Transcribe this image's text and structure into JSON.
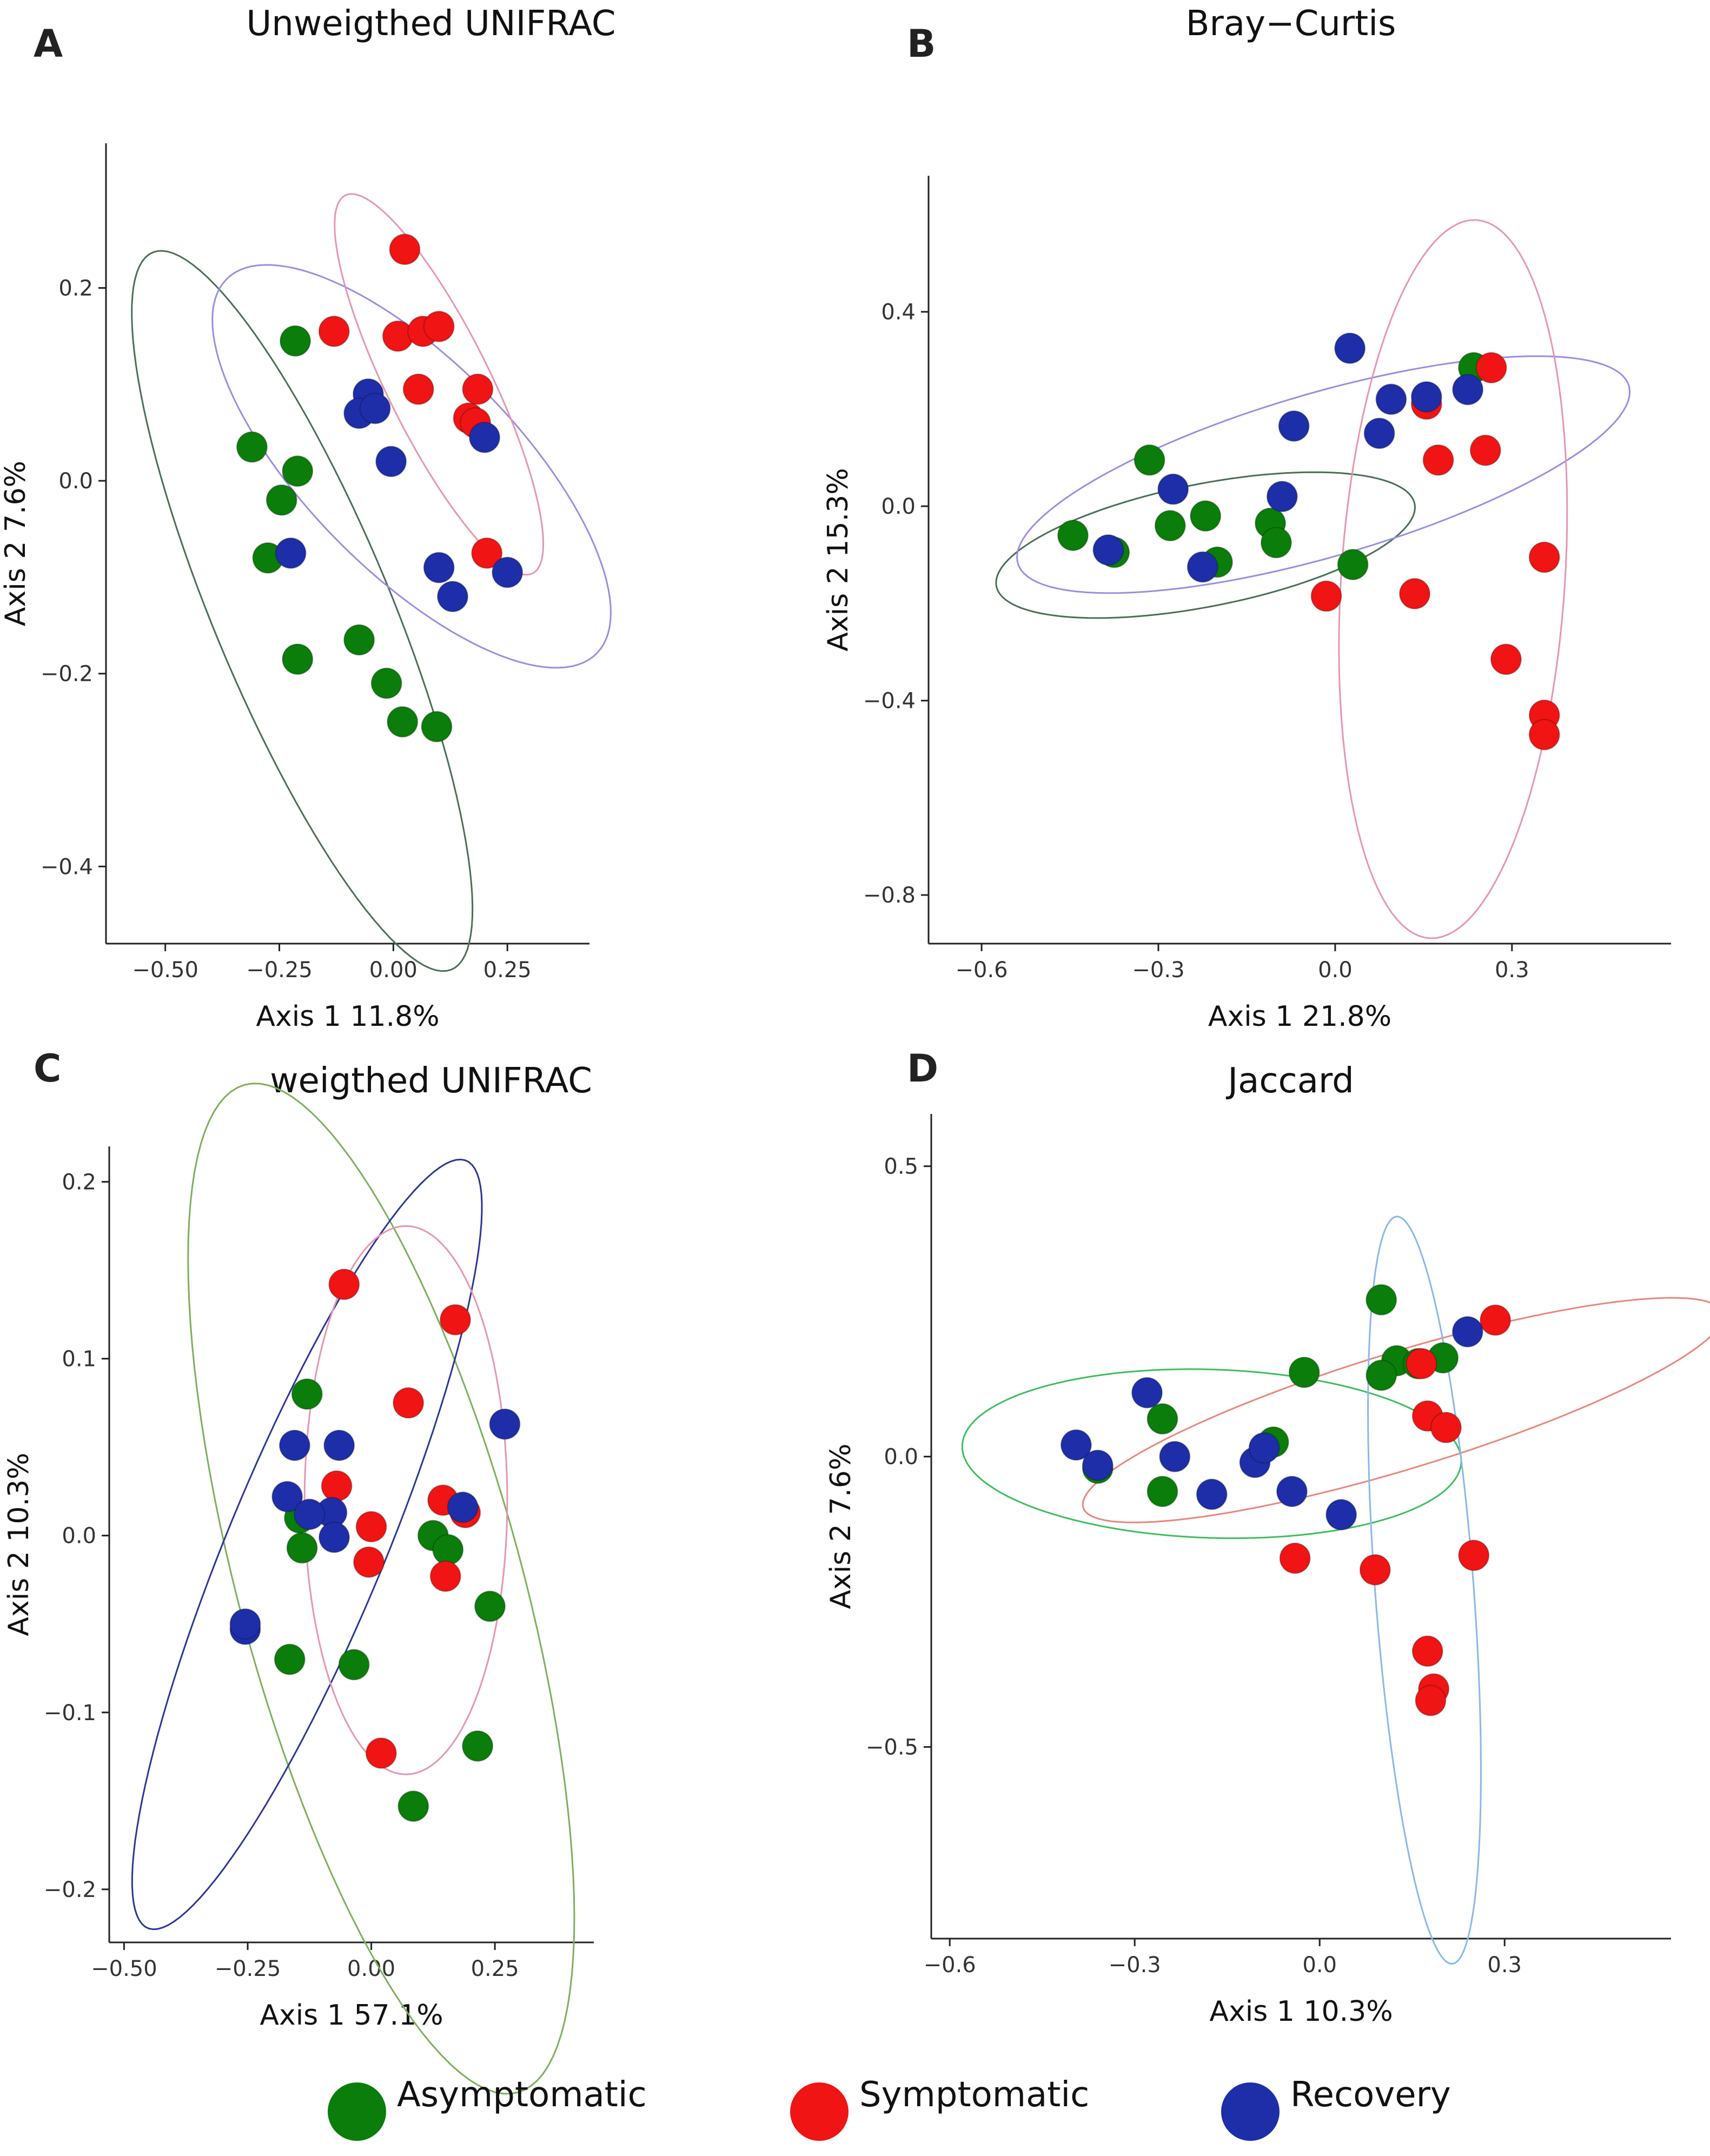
{
  "figure": {
    "legend": [
      {
        "label": "Asymptomatic",
        "color": "#0a7d0a"
      },
      {
        "label": "Symptomatic",
        "color": "#f01414"
      },
      {
        "label": "Recovery",
        "color": "#1e2ea8"
      }
    ]
  },
  "chart_data": [
    {
      "letter": "A",
      "title": "Unweigthed UNIFRAC",
      "type": "scatter",
      "xlabel": "Axis 1  11.8%",
      "ylabel": "Axis 2  7.6%",
      "xlim": [
        -0.63,
        0.43
      ],
      "ylim": [
        -0.48,
        0.35
      ],
      "xticks": [
        -0.5,
        -0.25,
        0.0,
        0.25
      ],
      "xtick_labels": [
        "−0.50",
        "−0.25",
        "0.00",
        "0.25"
      ],
      "yticks": [
        -0.4,
        -0.2,
        0.0,
        0.2
      ],
      "ytick_labels": [
        "−0.4",
        "−0.2",
        "0.0",
        "0.2"
      ],
      "series": [
        {
          "name": "Asymptomatic",
          "color": "#0a7d0a",
          "points": [
            [
              -0.215,
              0.145
            ],
            [
              -0.31,
              0.035
            ],
            [
              -0.21,
              0.01
            ],
            [
              -0.245,
              -0.02
            ],
            [
              -0.275,
              -0.08
            ],
            [
              -0.21,
              -0.185
            ],
            [
              -0.075,
              -0.165
            ],
            [
              -0.015,
              -0.21
            ],
            [
              0.02,
              -0.25
            ],
            [
              0.095,
              -0.255
            ]
          ]
        },
        {
          "name": "Symptomatic",
          "color": "#f01414",
          "points": [
            [
              0.025,
              0.24
            ],
            [
              -0.13,
              0.155
            ],
            [
              0.01,
              0.15
            ],
            [
              0.065,
              0.155
            ],
            [
              0.1,
              0.16
            ],
            [
              0.055,
              0.095
            ],
            [
              0.185,
              0.095
            ],
            [
              0.165,
              0.065
            ],
            [
              0.18,
              0.06
            ],
            [
              0.205,
              -0.075
            ]
          ]
        },
        {
          "name": "Recovery",
          "color": "#1e2ea8",
          "points": [
            [
              -0.055,
              0.09
            ],
            [
              -0.075,
              0.07
            ],
            [
              -0.04,
              0.075
            ],
            [
              -0.005,
              0.02
            ],
            [
              0.2,
              0.045
            ],
            [
              -0.225,
              -0.075
            ],
            [
              0.1,
              -0.09
            ],
            [
              0.13,
              -0.12
            ],
            [
              0.25,
              -0.095
            ]
          ]
        }
      ],
      "ellipses": [
        {
          "color": "#4a6e55",
          "center": [
            -0.2,
            -0.135
          ],
          "rx": 0.505,
          "ry": 0.155,
          "angle": -45
        },
        {
          "color": "#9a8ee0",
          "center": [
            0.04,
            0.015
          ],
          "rx": 0.465,
          "ry": 0.135,
          "angle": -21
        },
        {
          "color": "#e596b0",
          "center": [
            0.1,
            0.1
          ],
          "rx": 0.29,
          "ry": 0.085,
          "angle": -40
        }
      ]
    },
    {
      "letter": "B",
      "title": "Bray−Curtis",
      "type": "scatter",
      "xlabel": "Axis 1  21.8%",
      "ylabel": "Axis 2  15.3%",
      "xlim": [
        -0.69,
        0.57
      ],
      "ylim": [
        -0.9,
        0.68
      ],
      "xticks": [
        -0.6,
        -0.3,
        0.0,
        0.3
      ],
      "xtick_labels": [
        "−0.6",
        "−0.3",
        "0.0",
        "0.3"
      ],
      "yticks": [
        -0.8,
        -0.4,
        0.0,
        0.4
      ],
      "ytick_labels": [
        "−0.8",
        "−0.4",
        "0.0",
        "0.4"
      ],
      "series": [
        {
          "name": "Asymptomatic",
          "color": "#0a7d0a",
          "points": [
            [
              -0.315,
              0.095
            ],
            [
              -0.445,
              -0.06
            ],
            [
              -0.375,
              -0.095
            ],
            [
              -0.28,
              -0.04
            ],
            [
              -0.22,
              -0.02
            ],
            [
              -0.2,
              -0.115
            ],
            [
              -0.11,
              -0.035
            ],
            [
              -0.1,
              -0.075
            ],
            [
              0.03,
              -0.12
            ],
            [
              0.235,
              0.285
            ]
          ]
        },
        {
          "name": "Symptomatic",
          "color": "#f01414",
          "points": [
            [
              0.265,
              0.285
            ],
            [
              0.155,
              0.21
            ],
            [
              0.175,
              0.095
            ],
            [
              0.255,
              0.115
            ],
            [
              -0.015,
              -0.185
            ],
            [
              0.135,
              -0.18
            ],
            [
              0.355,
              -0.105
            ],
            [
              0.29,
              -0.315
            ],
            [
              0.355,
              -0.43
            ],
            [
              0.355,
              -0.47
            ]
          ]
        },
        {
          "name": "Recovery",
          "color": "#1e2ea8",
          "points": [
            [
              0.025,
              0.325
            ],
            [
              0.095,
              0.22
            ],
            [
              0.155,
              0.225
            ],
            [
              0.225,
              0.24
            ],
            [
              -0.07,
              0.165
            ],
            [
              0.075,
              0.15
            ],
            [
              -0.275,
              0.035
            ],
            [
              -0.09,
              0.02
            ],
            [
              -0.385,
              -0.09
            ],
            [
              -0.225,
              -0.125
            ]
          ]
        }
      ],
      "ellipses": [
        {
          "color": "#4a6e55",
          "center": [
            -0.22,
            -0.08
          ],
          "rx": 0.365,
          "ry": 0.125,
          "angle": 14
        },
        {
          "color": "#9a8ee0",
          "center": [
            -0.02,
            0.065
          ],
          "rx": 0.55,
          "ry": 0.165,
          "angle": 20
        },
        {
          "color": "#e596b0",
          "center": [
            0.2,
            -0.15
          ],
          "rx": 0.19,
          "ry": 0.74,
          "angle": -3
        }
      ]
    },
    {
      "letter": "C",
      "title": "weigthed UNIFRAC",
      "type": "scatter",
      "xlabel": "Axis 1  57.1%",
      "ylabel": "Axis 2  10.3%",
      "xlim": [
        -0.53,
        0.45
      ],
      "ylim": [
        -0.23,
        0.22
      ],
      "xticks": [
        -0.5,
        -0.25,
        0.0,
        0.25
      ],
      "xtick_labels": [
        "−0.50",
        "−0.25",
        "0.00",
        "0.25"
      ],
      "yticks": [
        -0.2,
        -0.1,
        0.0,
        0.1,
        0.2
      ],
      "ytick_labels": [
        "−0.2",
        "−0.1",
        "0.0",
        "0.1",
        "0.2"
      ],
      "series": [
        {
          "name": "Asymptomatic",
          "color": "#0a7d0a",
          "points": [
            [
              -0.13,
              0.08
            ],
            [
              -0.145,
              0.01
            ],
            [
              -0.14,
              -0.007
            ],
            [
              -0.165,
              -0.07
            ],
            [
              -0.035,
              -0.073
            ],
            [
              0.125,
              0.0
            ],
            [
              0.155,
              -0.008
            ],
            [
              0.24,
              -0.04
            ],
            [
              0.215,
              -0.119
            ],
            [
              0.085,
              -0.153
            ]
          ]
        },
        {
          "name": "Symptomatic",
          "color": "#f01414",
          "points": [
            [
              -0.055,
              0.142
            ],
            [
              0.17,
              0.122
            ],
            [
              0.075,
              0.075
            ],
            [
              -0.07,
              0.028
            ],
            [
              0.0,
              0.005
            ],
            [
              -0.005,
              -0.015
            ],
            [
              0.145,
              0.02
            ],
            [
              0.19,
              0.013
            ],
            [
              0.15,
              -0.023
            ],
            [
              0.02,
              -0.123
            ]
          ]
        },
        {
          "name": "Recovery",
          "color": "#1e2ea8",
          "points": [
            [
              0.27,
              0.063
            ],
            [
              -0.155,
              0.051
            ],
            [
              -0.065,
              0.051
            ],
            [
              -0.17,
              0.022
            ],
            [
              -0.08,
              0.013
            ],
            [
              -0.125,
              0.012
            ],
            [
              -0.075,
              -0.001
            ],
            [
              0.185,
              0.016
            ],
            [
              -0.255,
              -0.053
            ],
            [
              -0.255,
              -0.05
            ]
          ]
        }
      ],
      "ellipses": [
        {
          "color": "#7caf5c",
          "center": [
            0.02,
            -0.03
          ],
          "rx": 0.445,
          "ry": 0.19,
          "angle": -32
        },
        {
          "color": "#2a3696",
          "center": [
            -0.13,
            -0.005
          ],
          "rx": 0.405,
          "ry": 0.092,
          "angle": 30
        },
        {
          "color": "#e596b0",
          "center": [
            0.07,
            0.02
          ],
          "rx": 0.205,
          "ry": 0.155,
          "angle": 0
        }
      ]
    },
    {
      "letter": "D",
      "title": "Jaccard",
      "type": "scatter",
      "xlabel": "Axis 1  10.3%",
      "ylabel": "Axis 2  7.6%",
      "xlim": [
        -0.63,
        0.57
      ],
      "ylim": [
        -0.83,
        0.59
      ],
      "xticks": [
        -0.6,
        -0.3,
        0.0,
        0.3
      ],
      "xtick_labels": [
        "−0.6",
        "−0.3",
        "0.0",
        "0.3"
      ],
      "yticks": [
        -0.5,
        0.0,
        0.5
      ],
      "ytick_labels": [
        "−0.5",
        "0.0",
        "0.5"
      ],
      "series": [
        {
          "name": "Asymptomatic",
          "color": "#0a7d0a",
          "points": [
            [
              0.1,
              0.27
            ],
            [
              0.125,
              0.165
            ],
            [
              0.1,
              0.14
            ],
            [
              0.2,
              0.17
            ],
            [
              -0.025,
              0.145
            ],
            [
              -0.255,
              0.065
            ],
            [
              -0.075,
              0.025
            ],
            [
              -0.36,
              -0.02
            ],
            [
              -0.255,
              -0.06
            ],
            [
              0.16,
              0.16
            ]
          ]
        },
        {
          "name": "Symptomatic",
          "color": "#f01414",
          "points": [
            [
              0.285,
              0.235
            ],
            [
              0.165,
              0.16
            ],
            [
              0.175,
              0.07
            ],
            [
              0.205,
              0.05
            ],
            [
              -0.04,
              -0.175
            ],
            [
              0.09,
              -0.195
            ],
            [
              0.25,
              -0.17
            ],
            [
              0.175,
              -0.335
            ],
            [
              0.185,
              -0.4
            ],
            [
              0.18,
              -0.42
            ]
          ]
        },
        {
          "name": "Recovery",
          "color": "#1e2ea8",
          "points": [
            [
              0.24,
              0.215
            ],
            [
              -0.28,
              0.11
            ],
            [
              -0.395,
              0.02
            ],
            [
              -0.235,
              0.0
            ],
            [
              -0.175,
              -0.065
            ],
            [
              -0.105,
              -0.01
            ],
            [
              -0.045,
              -0.06
            ],
            [
              0.035,
              -0.1
            ],
            [
              -0.36,
              -0.015
            ],
            [
              -0.09,
              0.015
            ]
          ]
        }
      ],
      "ellipses": [
        {
          "color": "#3ebe5e",
          "center": [
            -0.175,
            0.005
          ],
          "rx": 0.405,
          "ry": 0.145,
          "angle": -2
        },
        {
          "color": "#e8877c",
          "center": [
            0.135,
            0.08
          ],
          "rx": 0.545,
          "ry": 0.1,
          "angle": 18
        },
        {
          "color": "#8ab8e8",
          "center": [
            0.17,
            -0.23
          ],
          "rx": 0.645,
          "ry": 0.08,
          "angle": 94
        }
      ]
    }
  ]
}
